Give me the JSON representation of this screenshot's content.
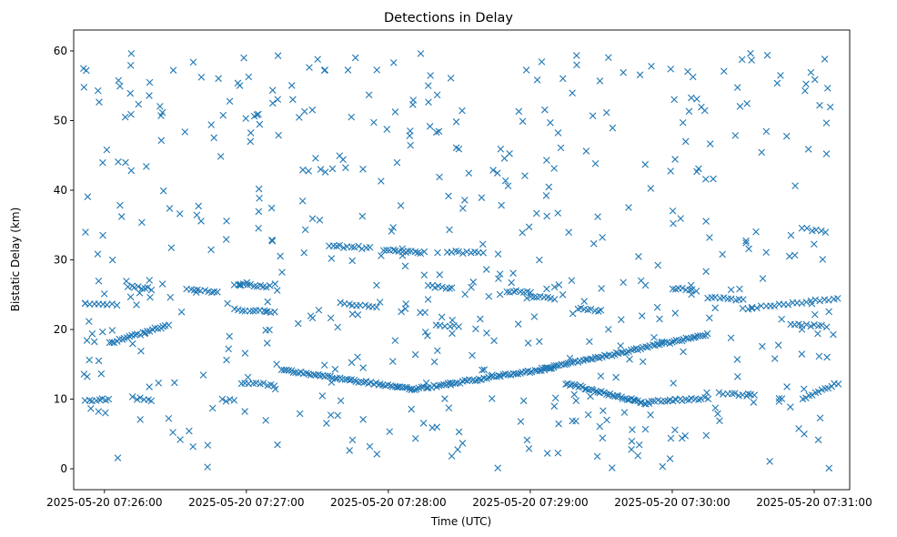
{
  "chart_data": {
    "type": "scatter",
    "title": "Detections in Delay",
    "xlabel": "Time (UTC)",
    "ylabel": "Bistatic Delay (km)",
    "marker": "x",
    "color": "#1f77b4",
    "x_unit": "seconds after 2025-05-20 07:26:00 UTC",
    "xlim": [
      -13,
      315
    ],
    "ylim": [
      -3,
      63
    ],
    "x_ticks": [
      {
        "value": 0,
        "label": "2025-05-20 07:26:00"
      },
      {
        "value": 60,
        "label": "2025-05-20 07:27:00"
      },
      {
        "value": 120,
        "label": "2025-05-20 07:28:00"
      },
      {
        "value": 180,
        "label": "2025-05-20 07:29:00"
      },
      {
        "value": 240,
        "label": "2025-05-20 07:30:00"
      },
      {
        "value": 300,
        "label": "2025-05-20 07:31:00"
      }
    ],
    "y_ticks": [
      {
        "value": 0,
        "label": "0"
      },
      {
        "value": 10,
        "label": "10"
      },
      {
        "value": 20,
        "label": "20"
      },
      {
        "value": 30,
        "label": "30"
      },
      {
        "value": 40,
        "label": "40"
      },
      {
        "value": 50,
        "label": "50"
      },
      {
        "value": 60,
        "label": "60"
      }
    ],
    "grid": false,
    "tracks": [
      {
        "x_start": -8,
        "x_end": 5,
        "y_start": 23.7,
        "y_end": 23.6,
        "n": 8
      },
      {
        "x_start": -8,
        "x_end": 2,
        "y_start": 9.8,
        "y_end": 10.0,
        "n": 8
      },
      {
        "x_start": 2,
        "x_end": 27,
        "y_start": 18.0,
        "y_end": 20.6,
        "n": 24
      },
      {
        "x_start": 10,
        "x_end": 20,
        "y_start": 26.3,
        "y_end": 25.8,
        "n": 8
      },
      {
        "x_start": 12,
        "x_end": 20,
        "y_start": 10.2,
        "y_end": 9.8,
        "n": 6
      },
      {
        "x_start": 35,
        "x_end": 48,
        "y_start": 25.8,
        "y_end": 25.4,
        "n": 10
      },
      {
        "x_start": 50,
        "x_end": 55,
        "y_start": 9.9,
        "y_end": 9.8,
        "n": 4
      },
      {
        "x_start": 55,
        "x_end": 70,
        "y_start": 26.5,
        "y_end": 26.2,
        "n": 12
      },
      {
        "x_start": 55,
        "x_end": 72,
        "y_start": 22.9,
        "y_end": 22.5,
        "n": 12
      },
      {
        "x_start": 58,
        "x_end": 72,
        "y_start": 12.4,
        "y_end": 12.0,
        "n": 10
      },
      {
        "x_start": 75,
        "x_end": 130,
        "y_start": 14.2,
        "y_end": 11.4,
        "n": 55
      },
      {
        "x_start": 95,
        "x_end": 112,
        "y_start": 32.0,
        "y_end": 31.7,
        "n": 12
      },
      {
        "x_start": 100,
        "x_end": 115,
        "y_start": 23.8,
        "y_end": 23.3,
        "n": 10
      },
      {
        "x_start": 118,
        "x_end": 135,
        "y_start": 31.4,
        "y_end": 31.0,
        "n": 14
      },
      {
        "x_start": 130,
        "x_end": 190,
        "y_start": 11.4,
        "y_end": 14.5,
        "n": 60
      },
      {
        "x_start": 137,
        "x_end": 147,
        "y_start": 26.2,
        "y_end": 26.0,
        "n": 8
      },
      {
        "x_start": 140,
        "x_end": 150,
        "y_start": 20.6,
        "y_end": 20.4,
        "n": 6
      },
      {
        "x_start": 145,
        "x_end": 160,
        "y_start": 31.2,
        "y_end": 31.0,
        "n": 10
      },
      {
        "x_start": 170,
        "x_end": 180,
        "y_start": 25.5,
        "y_end": 25.3,
        "n": 8
      },
      {
        "x_start": 180,
        "x_end": 190,
        "y_start": 24.7,
        "y_end": 24.4,
        "n": 8
      },
      {
        "x_start": 185,
        "x_end": 255,
        "y_start": 14.3,
        "y_end": 19.3,
        "n": 70
      },
      {
        "x_start": 195,
        "x_end": 230,
        "y_start": 12.3,
        "y_end": 9.3,
        "n": 40
      },
      {
        "x_start": 200,
        "x_end": 210,
        "y_start": 23.0,
        "y_end": 22.6,
        "n": 8
      },
      {
        "x_start": 230,
        "x_end": 255,
        "y_start": 9.7,
        "y_end": 10.1,
        "n": 20
      },
      {
        "x_start": 240,
        "x_end": 250,
        "y_start": 25.9,
        "y_end": 25.6,
        "n": 8
      },
      {
        "x_start": 255,
        "x_end": 270,
        "y_start": 24.6,
        "y_end": 24.3,
        "n": 10
      },
      {
        "x_start": 260,
        "x_end": 275,
        "y_start": 10.8,
        "y_end": 10.5,
        "n": 10
      },
      {
        "x_start": 270,
        "x_end": 310,
        "y_start": 23.0,
        "y_end": 24.5,
        "n": 22
      },
      {
        "x_start": 290,
        "x_end": 305,
        "y_start": 20.8,
        "y_end": 20.4,
        "n": 10
      },
      {
        "x_start": 295,
        "x_end": 310,
        "y_start": 10.0,
        "y_end": 12.3,
        "n": 12
      },
      {
        "x_start": 295,
        "x_end": 305,
        "y_start": 34.5,
        "y_end": 34.0,
        "n": 6
      }
    ],
    "clutter": {
      "x_range": [
        -9,
        310
      ],
      "y_range": [
        0,
        60
      ],
      "n": 520
    }
  }
}
